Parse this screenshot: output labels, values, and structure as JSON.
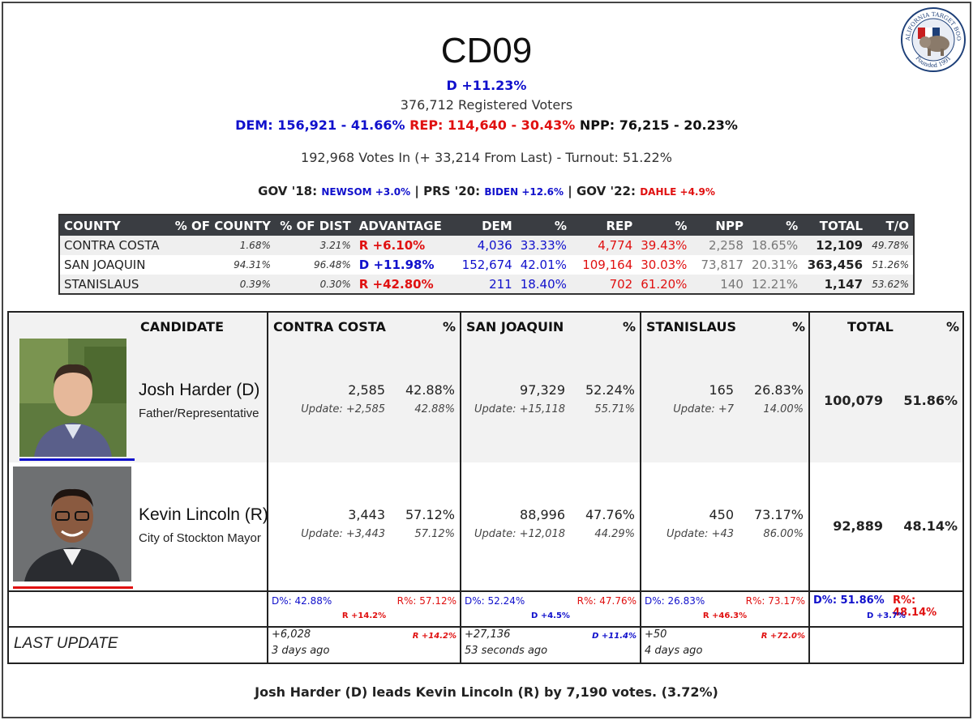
{
  "header": {
    "title": "CD09",
    "advantage": "D +11.23%",
    "registered": "376,712 Registered Voters",
    "dem": "DEM: 156,921 - 41.66%",
    "rep": "REP: 114,640 - 30.43%",
    "npp": "NPP: 76,215 - 20.23%",
    "votes_in": "192,968 Votes In (+ 33,214 From Last) - Turnout: 51.22%",
    "history": {
      "gov18_label": "GOV '18:",
      "gov18_value": "NEWSOM +3.0%",
      "prs20_label": "PRS '20:",
      "prs20_value": "BIDEN +12.6%",
      "gov22_label": "GOV '22:",
      "gov22_value": "DAHLE +4.9%",
      "sep": "|"
    },
    "logo": {
      "top_text": "CALIFORNIA TARGET BOOK",
      "bottom_text": "Founded 1991"
    }
  },
  "county_table": {
    "headers": [
      "COUNTY",
      "% OF COUNTY",
      "% OF DIST",
      "ADVANTAGE",
      "DEM",
      "%",
      "REP",
      "%",
      "NPP",
      "%",
      "TOTAL",
      "T/O"
    ],
    "rows": [
      {
        "county": "CONTRA COSTA",
        "pct_county": "1.68%",
        "pct_dist": "3.21%",
        "advantage": "R +6.10%",
        "adv_party": "R",
        "dem": "4,036",
        "dem_pct": "33.33%",
        "rep": "4,774",
        "rep_pct": "39.43%",
        "npp": "2,258",
        "npp_pct": "18.65%",
        "total": "12,109",
        "turnout": "49.78%"
      },
      {
        "county": "SAN JOAQUIN",
        "pct_county": "94.31%",
        "pct_dist": "96.48%",
        "advantage": "D +11.98%",
        "adv_party": "D",
        "dem": "152,674",
        "dem_pct": "42.01%",
        "rep": "109,164",
        "rep_pct": "30.03%",
        "npp": "73,817",
        "npp_pct": "20.31%",
        "total": "363,456",
        "turnout": "51.26%"
      },
      {
        "county": "STANISLAUS",
        "pct_county": "0.39%",
        "pct_dist": "0.30%",
        "advantage": "R +42.80%",
        "adv_party": "R",
        "dem": "211",
        "dem_pct": "18.40%",
        "rep": "702",
        "rep_pct": "61.20%",
        "npp": "140",
        "npp_pct": "12.21%",
        "total": "1,147",
        "turnout": "53.62%"
      }
    ]
  },
  "results": {
    "headers": {
      "candidate": "CANDIDATE",
      "contra_costa": "CONTRA COSTA",
      "san_joaquin": "SAN JOAQUIN",
      "stanislaus": "STANISLAUS",
      "total": "TOTAL",
      "pct": "%"
    },
    "candidates": [
      {
        "name": "Josh Harder (D)",
        "desc": "Father/Representative",
        "party_color": "#1010cc",
        "cc": {
          "votes": "2,585",
          "pct": "42.88%",
          "update": "Update: +2,585",
          "update_pct": "42.88%"
        },
        "sj": {
          "votes": "97,329",
          "pct": "52.24%",
          "update": "Update: +15,118",
          "update_pct": "55.71%"
        },
        "st": {
          "votes": "165",
          "pct": "26.83%",
          "update": "Update: +7",
          "update_pct": "14.00%"
        },
        "total": "100,079",
        "total_pct": "51.86%"
      },
      {
        "name": "Kevin Lincoln (R)",
        "desc": "City of Stockton Mayor",
        "party_color": "#e01010",
        "cc": {
          "votes": "3,443",
          "pct": "57.12%",
          "update": "Update: +3,443",
          "update_pct": "57.12%"
        },
        "sj": {
          "votes": "88,996",
          "pct": "47.76%",
          "update": "Update: +12,018",
          "update_pct": "44.29%"
        },
        "st": {
          "votes": "450",
          "pct": "73.17%",
          "update": "Update: +43",
          "update_pct": "86.00%"
        },
        "total": "92,889",
        "total_pct": "48.14%"
      }
    ],
    "summary": {
      "cc": {
        "d": "D%: 42.88%",
        "r": "R%: 57.12%",
        "margin": "R +14.2%"
      },
      "sj": {
        "d": "D%: 52.24%",
        "r": "R%: 47.76%",
        "margin": "D +4.5%"
      },
      "st": {
        "d": "D%: 26.83%",
        "r": "R%: 73.17%",
        "margin": "R +46.3%"
      },
      "total": {
        "d": "D%: 51.86%",
        "r": "R%: 48.14%",
        "margin": "D +3.7%"
      }
    },
    "last_update": {
      "label": "LAST UPDATE",
      "cc": {
        "added": "+6,028",
        "margin": "R +14.2%",
        "when": "3 days ago"
      },
      "sj": {
        "added": "+27,136",
        "margin": "D +11.4%",
        "when": "53 seconds ago"
      },
      "st": {
        "added": "+50",
        "margin": "R +72.0%",
        "when": "4 days ago"
      }
    }
  },
  "footer": "Josh Harder (D) leads Kevin Lincoln (R) by 7,190 votes. (3.72%)",
  "colors": {
    "dem": "#1010cc",
    "rep": "#e01010",
    "header_bg": "#3a3d42"
  }
}
